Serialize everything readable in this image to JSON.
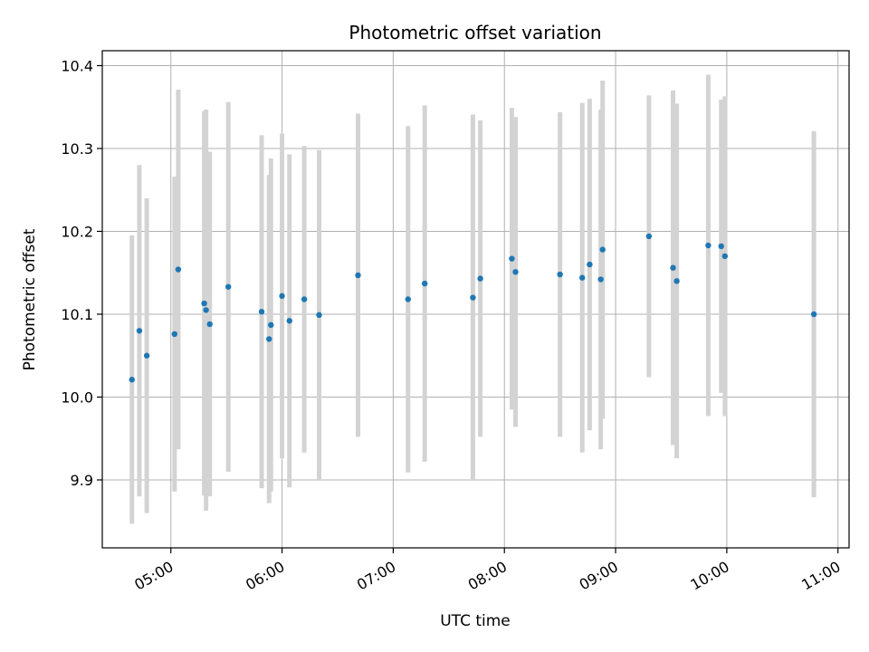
{
  "chart_data": {
    "type": "scatter",
    "title": "Photometric offset variation",
    "xlabel": "UTC time",
    "ylabel": "Photometric offset",
    "xlim": [
      "04:23",
      "11:06"
    ],
    "ylim": [
      9.818,
      10.418
    ],
    "grid": true,
    "colors": {
      "point": "#1f77b4",
      "errorbar": "#d3d3d3",
      "grid": "#b0b0b0"
    },
    "x_ticks": [
      "05:00",
      "06:00",
      "07:00",
      "08:00",
      "09:00",
      "10:00",
      "11:00"
    ],
    "y_ticks": [
      "9.9",
      "10.0",
      "10.1",
      "10.2",
      "10.3",
      "10.4"
    ],
    "points": [
      {
        "t": "04:39",
        "y": 10.021,
        "err": 0.174
      },
      {
        "t": "04:43",
        "y": 10.08,
        "err": 0.2
      },
      {
        "t": "04:47",
        "y": 10.05,
        "err": 0.19
      },
      {
        "t": "05:02",
        "y": 10.076,
        "err": 0.19
      },
      {
        "t": "05:04",
        "y": 10.154,
        "err": 0.217
      },
      {
        "t": "05:18",
        "y": 10.113,
        "err": 0.232
      },
      {
        "t": "05:19",
        "y": 10.105,
        "err": 0.242
      },
      {
        "t": "05:21",
        "y": 10.088,
        "err": 0.208
      },
      {
        "t": "05:31",
        "y": 10.133,
        "err": 0.223
      },
      {
        "t": "05:49",
        "y": 10.103,
        "err": 0.213
      },
      {
        "t": "05:53",
        "y": 10.07,
        "err": 0.198
      },
      {
        "t": "05:54",
        "y": 10.087,
        "err": 0.201
      },
      {
        "t": "06:00",
        "y": 10.122,
        "err": 0.196
      },
      {
        "t": "06:04",
        "y": 10.092,
        "err": 0.201
      },
      {
        "t": "06:12",
        "y": 10.118,
        "err": 0.185
      },
      {
        "t": "06:20",
        "y": 10.099,
        "err": 0.199
      },
      {
        "t": "06:41",
        "y": 10.147,
        "err": 0.195
      },
      {
        "t": "07:08",
        "y": 10.118,
        "err": 0.209
      },
      {
        "t": "07:17",
        "y": 10.137,
        "err": 0.215
      },
      {
        "t": "07:43",
        "y": 10.12,
        "err": 0.221
      },
      {
        "t": "07:47",
        "y": 10.143,
        "err": 0.191
      },
      {
        "t": "08:04",
        "y": 10.167,
        "err": 0.182
      },
      {
        "t": "08:06",
        "y": 10.151,
        "err": 0.187
      },
      {
        "t": "08:30",
        "y": 10.148,
        "err": 0.196
      },
      {
        "t": "08:42",
        "y": 10.144,
        "err": 0.211
      },
      {
        "t": "08:46",
        "y": 10.16,
        "err": 0.2
      },
      {
        "t": "08:52",
        "y": 10.142,
        "err": 0.205
      },
      {
        "t": "08:53",
        "y": 10.178,
        "err": 0.204
      },
      {
        "t": "09:18",
        "y": 10.194,
        "err": 0.17
      },
      {
        "t": "09:31",
        "y": 10.156,
        "err": 0.214
      },
      {
        "t": "09:33",
        "y": 10.14,
        "err": 0.214
      },
      {
        "t": "09:50",
        "y": 10.183,
        "err": 0.206
      },
      {
        "t": "09:57",
        "y": 10.182,
        "err": 0.177
      },
      {
        "t": "09:59",
        "y": 10.17,
        "err": 0.193
      },
      {
        "t": "10:47",
        "y": 10.1,
        "err": 0.221
      }
    ]
  }
}
